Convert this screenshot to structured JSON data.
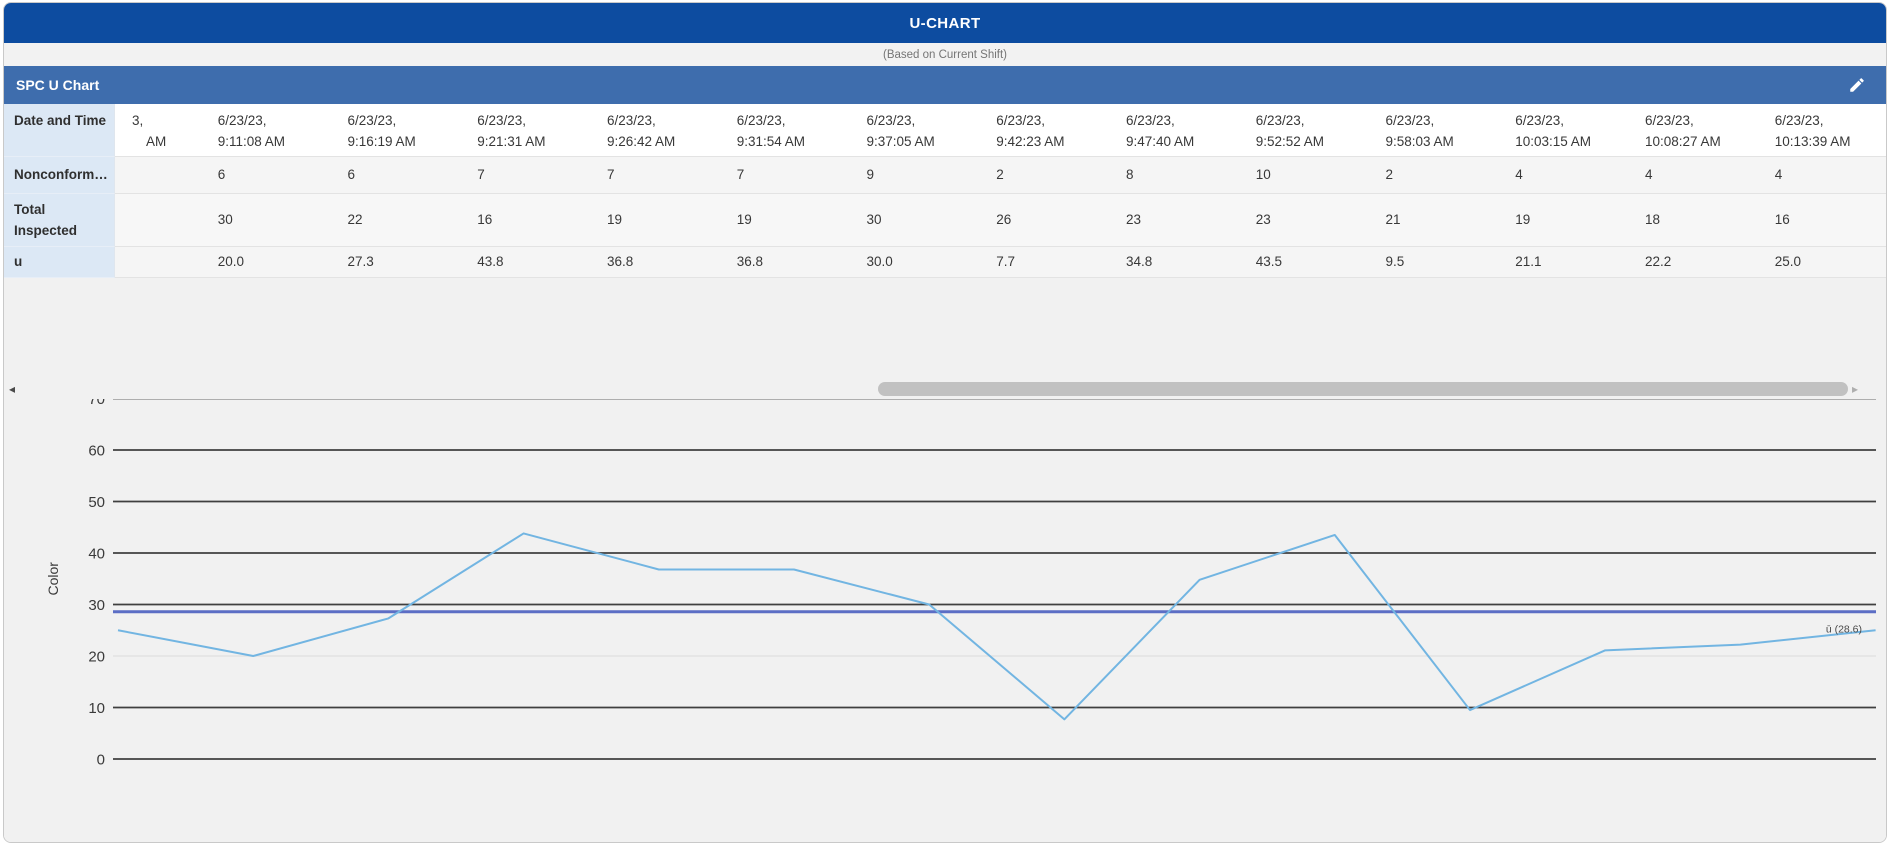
{
  "header": {
    "title": "U-CHART",
    "subtitle": "(Based on Current Shift)"
  },
  "panel": {
    "title": "SPC U Chart"
  },
  "table": {
    "row_labels": [
      "Date and Time",
      "Nonconform…",
      "Total Inspected",
      "u"
    ],
    "clipped_first_column": {
      "line1": "3,",
      "line2": "AM"
    },
    "columns": [
      {
        "date": "6/23/23,",
        "time": "9:11:08 AM",
        "nonconforming": "6",
        "total_inspected": "30",
        "u": "20.0"
      },
      {
        "date": "6/23/23,",
        "time": "9:16:19 AM",
        "nonconforming": "6",
        "total_inspected": "22",
        "u": "27.3"
      },
      {
        "date": "6/23/23,",
        "time": "9:21:31 AM",
        "nonconforming": "7",
        "total_inspected": "16",
        "u": "43.8"
      },
      {
        "date": "6/23/23,",
        "time": "9:26:42 AM",
        "nonconforming": "7",
        "total_inspected": "19",
        "u": "36.8"
      },
      {
        "date": "6/23/23,",
        "time": "9:31:54 AM",
        "nonconforming": "7",
        "total_inspected": "19",
        "u": "36.8"
      },
      {
        "date": "6/23/23,",
        "time": "9:37:05 AM",
        "nonconforming": "9",
        "total_inspected": "30",
        "u": "30.0"
      },
      {
        "date": "6/23/23,",
        "time": "9:42:23 AM",
        "nonconforming": "2",
        "total_inspected": "26",
        "u": "7.7"
      },
      {
        "date": "6/23/23,",
        "time": "9:47:40 AM",
        "nonconforming": "8",
        "total_inspected": "23",
        "u": "34.8"
      },
      {
        "date": "6/23/23,",
        "time": "9:52:52 AM",
        "nonconforming": "10",
        "total_inspected": "23",
        "u": "43.5"
      },
      {
        "date": "6/23/23,",
        "time": "9:58:03 AM",
        "nonconforming": "2",
        "total_inspected": "21",
        "u": "9.5"
      },
      {
        "date": "6/23/23,",
        "time": "10:03:15 AM",
        "nonconforming": "4",
        "total_inspected": "19",
        "u": "21.1"
      },
      {
        "date": "6/23/23,",
        "time": "10:08:27 AM",
        "nonconforming": "4",
        "total_inspected": "18",
        "u": "22.2"
      },
      {
        "date": "6/23/23,",
        "time": "10:13:39 AM",
        "nonconforming": "4",
        "total_inspected": "16",
        "u": "25.0"
      }
    ]
  },
  "scrollbar": {
    "left_arrow": "◂",
    "right_arrow": "▸"
  },
  "chart_data": {
    "type": "line",
    "ylabel": "Color",
    "ylim": [
      0,
      70
    ],
    "yticks": [
      0,
      10,
      20,
      30,
      40,
      50,
      60,
      70
    ],
    "light_gridlines": [
      20
    ],
    "grid": "on",
    "series": [
      {
        "name": "u",
        "values": [
          25.0,
          20.0,
          27.3,
          43.8,
          36.8,
          36.8,
          30.0,
          7.7,
          34.8,
          43.5,
          9.5,
          21.1,
          22.2,
          25.0
        ]
      }
    ],
    "center_line": {
      "value": 28.6,
      "label": "ū (28.6)"
    },
    "series_color": "#72b5e2",
    "center_color": "#5c6ec5"
  }
}
